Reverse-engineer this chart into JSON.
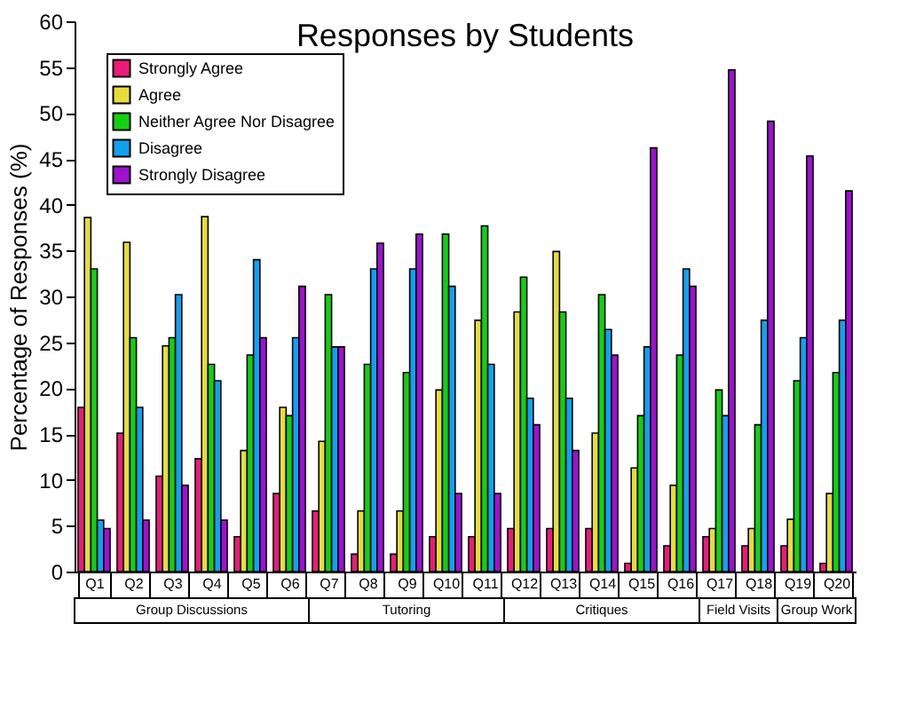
{
  "chart_data": {
    "type": "bar",
    "title": "Responses by Students",
    "ylabel": "Percentage of Responses (%)",
    "categories": [
      "Q1",
      "Q2",
      "Q3",
      "Q4",
      "Q5",
      "Q6",
      "Q7",
      "Q8",
      "Q9",
      "Q10",
      "Q11",
      "Q12",
      "Q13",
      "Q14",
      "Q15",
      "Q16",
      "Q17",
      "Q18",
      "Q19",
      "Q20"
    ],
    "series": [
      {
        "name": "Strongly Agree",
        "color": "#ec1a7a",
        "values": [
          17.9,
          15.1,
          10.4,
          12.3,
          3.8,
          8.5,
          6.6,
          1.9,
          1.9,
          3.8,
          3.8,
          4.7,
          4.7,
          4.7,
          0.9,
          2.8,
          3.8,
          2.8,
          2.8,
          0.9
        ]
      },
      {
        "name": "Agree",
        "color": "#e8dc3a",
        "values": [
          38.6,
          35.9,
          24.6,
          38.7,
          13.2,
          17.9,
          14.2,
          6.6,
          6.6,
          19.8,
          27.4,
          28.3,
          34.9,
          15.1,
          11.3,
          9.4,
          4.7,
          4.7,
          5.7,
          8.5
        ]
      },
      {
        "name": "Neither Agree Nor Disagree",
        "color": "#12d012",
        "values": [
          33,
          25.5,
          25.5,
          22.6,
          23.6,
          17,
          30.2,
          22.6,
          21.7,
          36.8,
          37.7,
          32.1,
          28.3,
          30.2,
          17,
          23.6,
          19.8,
          16,
          20.8,
          21.7
        ]
      },
      {
        "name": "Disagree",
        "color": "#12a0f0",
        "values": [
          5.6,
          17.9,
          30.2,
          20.8,
          34,
          25.5,
          24.5,
          33,
          33,
          31.1,
          22.6,
          18.9,
          18.9,
          26.4,
          24.5,
          33,
          17,
          27.4,
          25.5,
          27.4
        ]
      },
      {
        "name": "Strongly Disagree",
        "color": "#a010d0",
        "values": [
          4.7,
          5.6,
          9.4,
          5.6,
          25.5,
          31.1,
          24.5,
          35.8,
          36.8,
          8.5,
          8.5,
          16,
          13.2,
          23.6,
          46.2,
          31.1,
          54.7,
          49.1,
          45.3,
          41.5
        ]
      }
    ],
    "ylim": [
      0,
      60
    ],
    "yticks": [
      0,
      5,
      10,
      15,
      20,
      25,
      30,
      35,
      40,
      45,
      50,
      55,
      60
    ],
    "grid": false,
    "legend": "top left",
    "annotations": [
      "Group Discussions",
      "Tutoring",
      "Critiques",
      "Field Visits",
      "Group Work"
    ]
  }
}
